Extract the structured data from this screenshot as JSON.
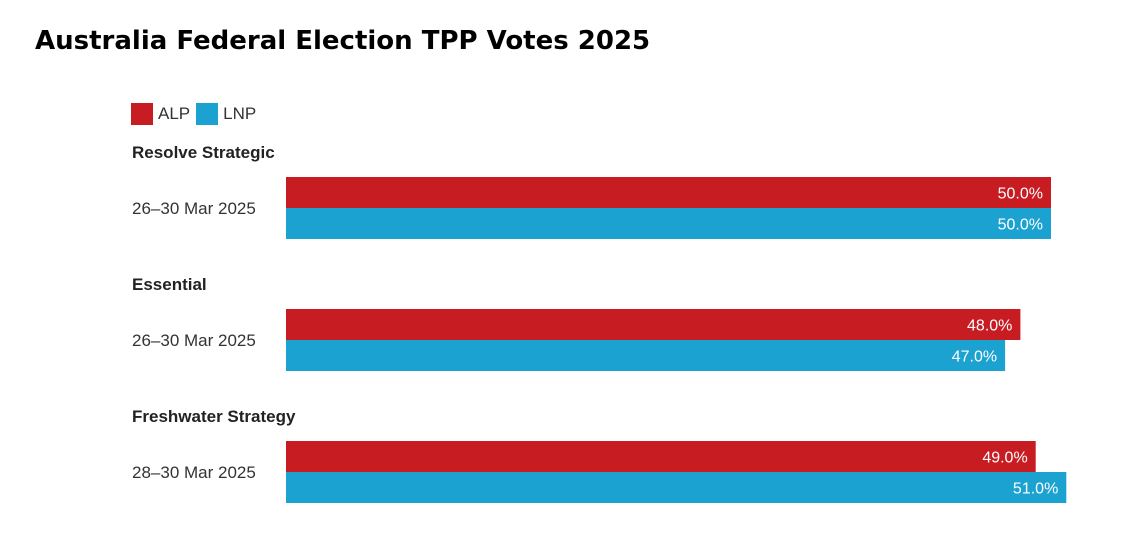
{
  "chart_data": {
    "type": "bar",
    "orientation": "horizontal",
    "title": "Australia Federal Election TPP Votes 2025",
    "legend": [
      {
        "name": "ALP",
        "color": "#c71c22"
      },
      {
        "name": "LNP",
        "color": "#1ba2d0"
      }
    ],
    "legend_position": "top-left",
    "grid": false,
    "xlim": [
      0,
      51
    ],
    "groups": [
      {
        "pollster": "Resolve Strategic",
        "date": "26–30 Mar 2025",
        "values": [
          50.0,
          50.0
        ],
        "labels": [
          "50.0%",
          "50.0%"
        ]
      },
      {
        "pollster": "Essential",
        "date": "26–30 Mar 2025",
        "values": [
          48.0,
          47.0
        ],
        "labels": [
          "48.0%",
          "47.0%"
        ]
      },
      {
        "pollster": "Freshwater Strategy",
        "date": "28–30 Mar 2025",
        "values": [
          49.0,
          51.0
        ],
        "labels": [
          "49.0%",
          "51.0%"
        ]
      }
    ]
  }
}
